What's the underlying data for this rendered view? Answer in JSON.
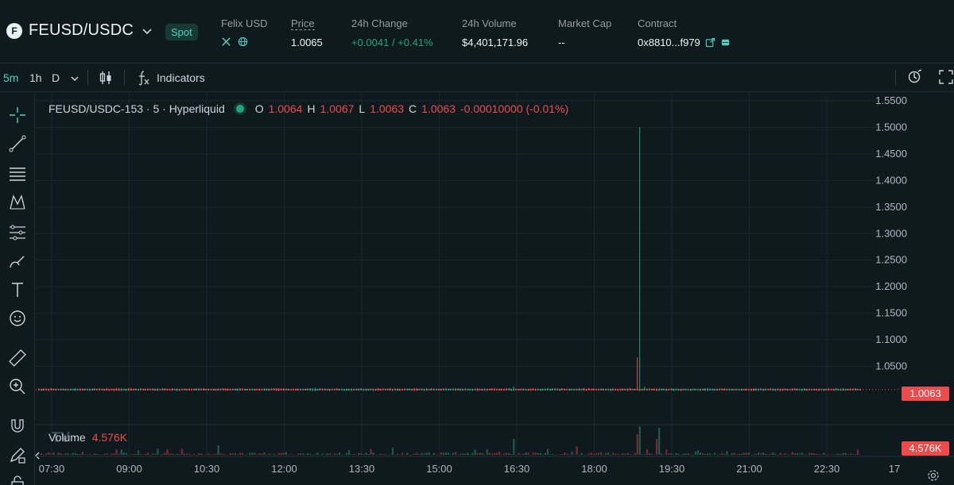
{
  "header": {
    "pair_icon": "F",
    "pair": "FEUSD/USDC",
    "badge": "Spot",
    "token_label": "Felix USD",
    "price_label": "Price",
    "price_value": "1.0065",
    "change_label": "24h Change",
    "change_value": "+0.0041 / +0.41%",
    "volume_label": "24h Volume",
    "volume_value": "$4,401,171.96",
    "mcap_label": "Market Cap",
    "mcap_value": "--",
    "contract_label": "Contract",
    "contract_value": "0x8810...f979"
  },
  "toolbar": {
    "interval_5m": "5m",
    "interval_1h": "1h",
    "interval_d": "D",
    "indicators": "Indicators"
  },
  "legend": {
    "symbol": "FEUSD/USDC-153 · 5 · Hyperliquid",
    "o_label": "O",
    "o_value": "1.0064",
    "h_label": "H",
    "h_value": "1.0067",
    "l_label": "L",
    "l_value": "1.0063",
    "c_label": "C",
    "c_value": "1.0063",
    "change": "-0.00010000 (-0.01%)",
    "volume_label": "Volume",
    "volume_value": "4.576K"
  },
  "price_tag": "1.0063",
  "volume_tag": "4.576K",
  "colors": {
    "up": "#1fa67d",
    "down": "#ed4b4b",
    "accent": "#50d2c1",
    "bg": "#0f1a1f"
  },
  "chart_data": {
    "type": "candlestick",
    "y_ticks": [
      "1.5500",
      "1.5000",
      "1.4500",
      "1.4000",
      "1.3500",
      "1.3000",
      "1.2500",
      "1.2000",
      "1.1500",
      "1.1000",
      "1.0500"
    ],
    "ylim": [
      1.0,
      1.55
    ],
    "x_ticks": [
      "07:30",
      "09:00",
      "10:30",
      "12:00",
      "13:30",
      "15:00",
      "16:30",
      "18:00",
      "19:30",
      "21:00",
      "22:30",
      "17"
    ],
    "last_price": 1.0063,
    "spike_high": 1.5,
    "spike_time": "19:00",
    "typical_price": 1.0063
  }
}
